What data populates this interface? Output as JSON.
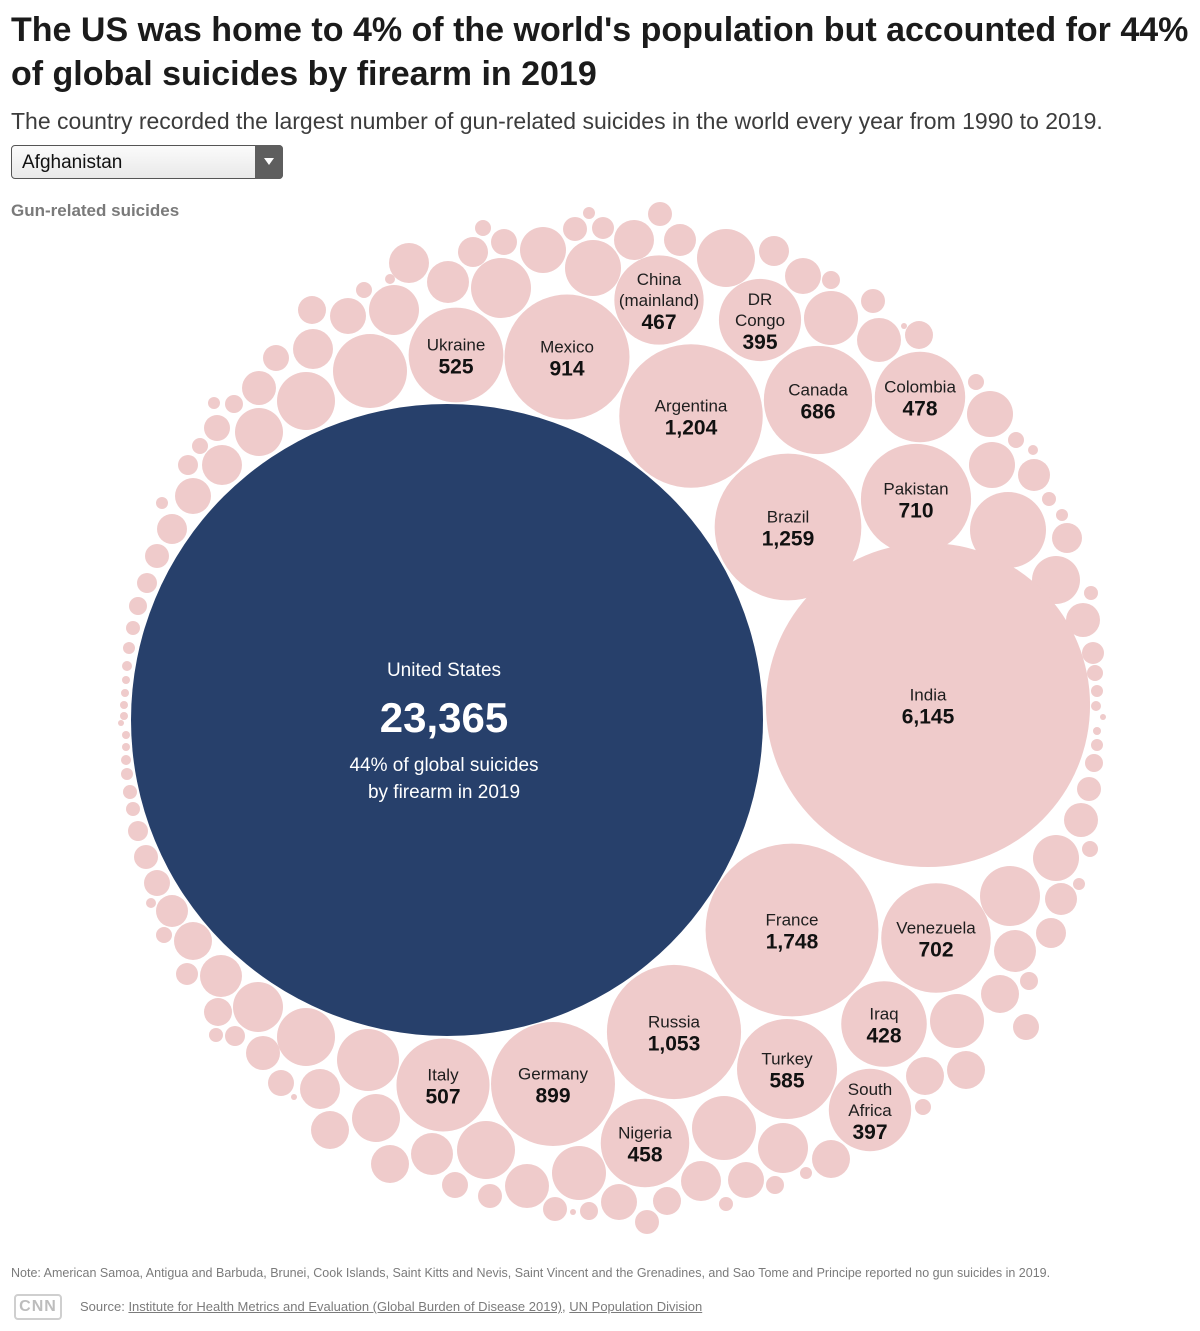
{
  "header": {
    "title": "The US was home to 4% of the world's population but accounted for 44% of global suicides by firearm in 2019",
    "subtitle": "The country recorded the largest number of gun-related suicides in the world every year from 1990 to 2019."
  },
  "dropdown": {
    "selected": "Afghanistan"
  },
  "legend_label": "Gun-related suicides",
  "colors": {
    "highlight": "#27406b",
    "bubble": "#efcbcb",
    "background": "#ffffff"
  },
  "chart_data": {
    "type": "bubble",
    "unit": "Gun-related suicides",
    "year": 2019,
    "highlight": {
      "name": "United States",
      "value": 23365,
      "value_label": "23,365",
      "caption_line1": "44% of global suicides",
      "caption_line2": "by firearm in 2019"
    },
    "labeled": [
      {
        "name": "India",
        "lines": [
          "India"
        ],
        "value": 6145,
        "value_label": "6,145"
      },
      {
        "name": "France",
        "lines": [
          "France"
        ],
        "value": 1748,
        "value_label": "1,748"
      },
      {
        "name": "Brazil",
        "lines": [
          "Brazil"
        ],
        "value": 1259,
        "value_label": "1,259"
      },
      {
        "name": "Argentina",
        "lines": [
          "Argentina"
        ],
        "value": 1204,
        "value_label": "1,204"
      },
      {
        "name": "Russia",
        "lines": [
          "Russia"
        ],
        "value": 1053,
        "value_label": "1,053"
      },
      {
        "name": "Mexico",
        "lines": [
          "Mexico"
        ],
        "value": 914,
        "value_label": "914"
      },
      {
        "name": "Germany",
        "lines": [
          "Germany"
        ],
        "value": 899,
        "value_label": "899"
      },
      {
        "name": "Pakistan",
        "lines": [
          "Pakistan"
        ],
        "value": 710,
        "value_label": "710"
      },
      {
        "name": "Venezuela",
        "lines": [
          "Venezuela"
        ],
        "value": 702,
        "value_label": "702"
      },
      {
        "name": "Canada",
        "lines": [
          "Canada"
        ],
        "value": 686,
        "value_label": "686"
      },
      {
        "name": "Turkey",
        "lines": [
          "Turkey"
        ],
        "value": 585,
        "value_label": "585"
      },
      {
        "name": "Ukraine",
        "lines": [
          "Ukraine"
        ],
        "value": 525,
        "value_label": "525"
      },
      {
        "name": "Italy",
        "lines": [
          "Italy"
        ],
        "value": 507,
        "value_label": "507"
      },
      {
        "name": "Colombia",
        "lines": [
          "Colombia"
        ],
        "value": 478,
        "value_label": "478"
      },
      {
        "name": "China (mainland)",
        "lines": [
          "China",
          "(mainland)"
        ],
        "value": 467,
        "value_label": "467"
      },
      {
        "name": "Nigeria",
        "lines": [
          "Nigeria"
        ],
        "value": 458,
        "value_label": "458"
      },
      {
        "name": "Iraq",
        "lines": [
          "Iraq"
        ],
        "value": 428,
        "value_label": "428"
      },
      {
        "name": "South Africa",
        "lines": [
          "South",
          "Africa"
        ],
        "value": 397,
        "value_label": "397"
      },
      {
        "name": "DR Congo",
        "lines": [
          "DR",
          "Congo"
        ],
        "value": 395,
        "value_label": "395"
      }
    ],
    "unlabeled_bubbles": 180
  },
  "footer": {
    "note": "Note: American Samoa, Antigua and Barbuda, Brunei, Cook Islands, Saint Kitts and Nevis, Saint Vincent and the Grenadines, and Sao Tome and Principe reported no gun suicides in 2019.",
    "logo": "CNN",
    "source_prefix": "Source:",
    "source_link_1": "Institute for Health Metrics and Evaluation (Global Burden of Disease 2019)",
    "source_sep": ",",
    "source_link_2": "UN Population Division"
  }
}
